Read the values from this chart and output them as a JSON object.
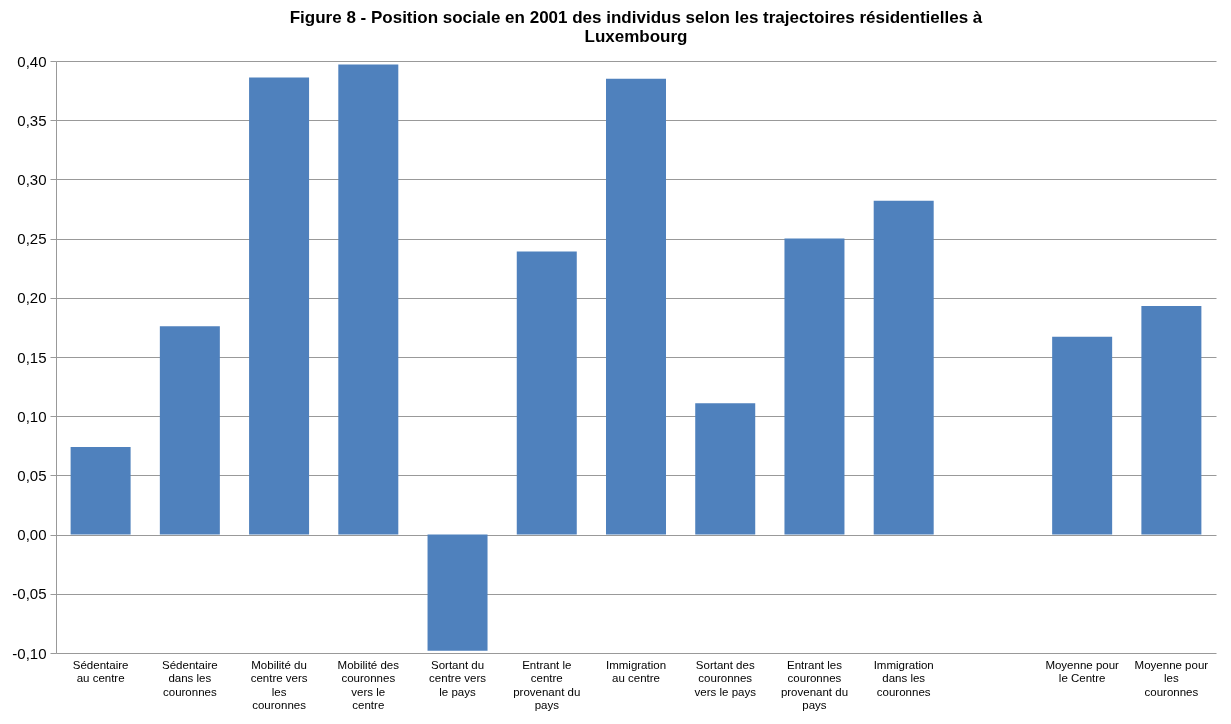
{
  "chart_data": {
    "type": "bar",
    "title": "Figure 8 - Position sociale en 2001 des individus selon les trajectoires résidentielles à Luxembourg",
    "categories": [
      "Sédentaire au centre",
      "Sédentaire dans les couronnes",
      "Mobilité du centre vers les couronnes",
      "Mobilité des couronnes vers le centre",
      "Sortant du centre vers le pays",
      "Entrant le centre provenant du pays",
      "Immigration au centre",
      "Sortant des couronnes vers le pays",
      "Entrant  les couronnes provenant du pays",
      "Immigration dans les couronnes",
      null,
      "Moyenne pour le Centre",
      "Moyenne pour les couronnes"
    ],
    "values": [
      0.074,
      0.176,
      0.386,
      0.397,
      -0.098,
      0.239,
      0.385,
      0.111,
      0.25,
      0.282,
      null,
      0.167,
      0.193
    ],
    "color": "#4f81bd",
    "ylim": [
      -0.1,
      0.4
    ],
    "yticks": [
      {
        "value": -0.1,
        "label": "-0,10"
      },
      {
        "value": -0.05,
        "label": "-0,05"
      },
      {
        "value": 0,
        "label": "0,00"
      },
      {
        "value": 0.05,
        "label": "0,05"
      },
      {
        "value": 0.1,
        "label": "0,10"
      },
      {
        "value": 0.15,
        "label": "0,15"
      },
      {
        "value": 0.2,
        "label": "0,20"
      },
      {
        "value": 0.25,
        "label": "0,25"
      },
      {
        "value": 0.3,
        "label": "0,30"
      },
      {
        "value": 0.35,
        "label": "0,35"
      },
      {
        "value": 0.4,
        "label": "0,40"
      }
    ],
    "grid": "y"
  }
}
